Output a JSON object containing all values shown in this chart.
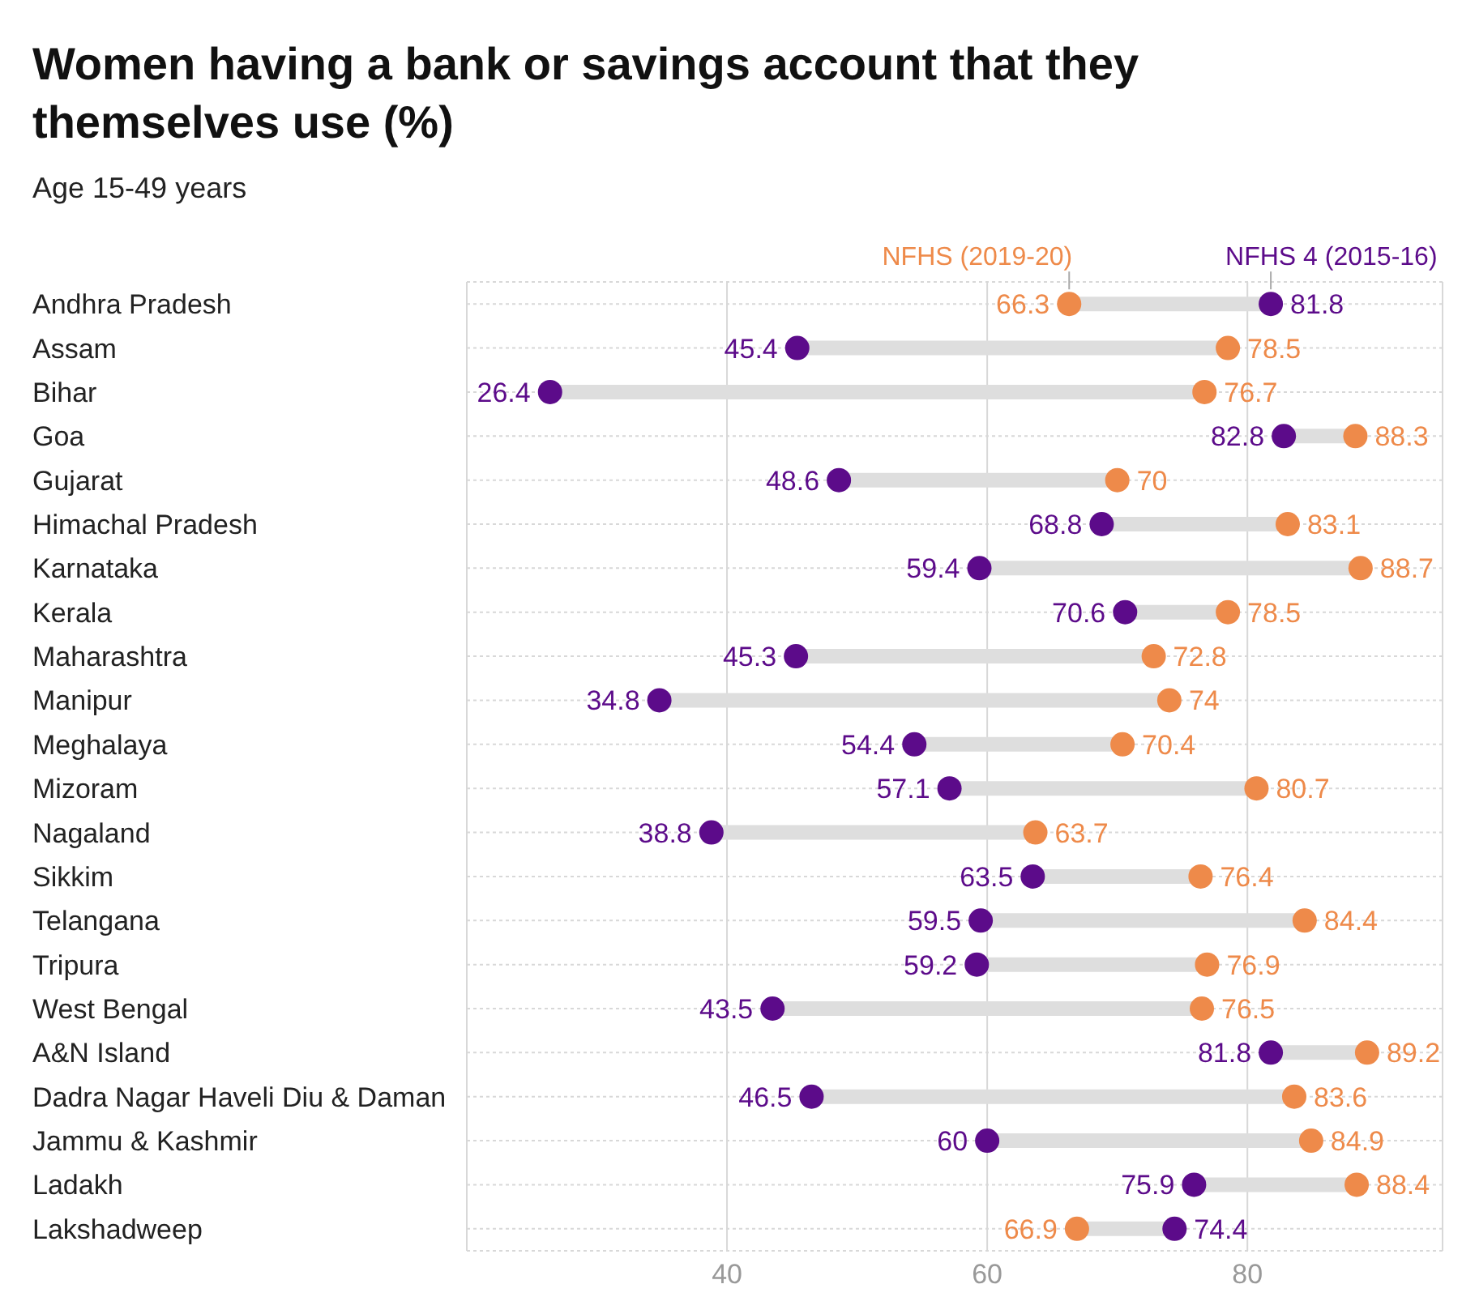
{
  "chart_data": {
    "type": "scatter",
    "title": "Women having a bank or savings account that they themselves use (%)",
    "subtitle": "Age 15-49 years",
    "orientation": "horizontal",
    "categories": [
      "Andhra Pradesh",
      "Assam",
      "Bihar",
      "Goa",
      "Gujarat",
      "Himachal Pradesh",
      "Karnataka",
      "Kerala",
      "Maharashtra",
      "Manipur",
      "Meghalaya",
      "Mizoram",
      "Nagaland",
      "Sikkim",
      "Telangana",
      "Tripura",
      "West Bengal",
      "A&N Island",
      "Dadra Nagar Haveli Diu & Daman",
      "Jammu & Kashmir",
      "Ladakh",
      "Lakshadweep"
    ],
    "series": [
      {
        "name": "NFHS 4 (2015-16)",
        "color": "#5c0b8a",
        "values": [
          81.8,
          45.4,
          26.4,
          82.8,
          48.6,
          68.8,
          59.4,
          70.6,
          45.3,
          34.8,
          54.4,
          57.1,
          38.8,
          63.5,
          59.5,
          59.2,
          43.5,
          81.8,
          46.5,
          60,
          75.9,
          74.4
        ]
      },
      {
        "name": "NFHS (2019-20)",
        "color": "#ee8a4a",
        "values": [
          66.3,
          78.5,
          76.7,
          88.3,
          70,
          83.1,
          88.7,
          78.5,
          72.8,
          74,
          70.4,
          80.7,
          63.7,
          76.4,
          84.4,
          76.9,
          76.5,
          89.2,
          83.6,
          84.9,
          88.4,
          66.9
        ]
      }
    ],
    "xlim": [
      20,
      95
    ],
    "xticks": [
      40,
      60,
      80
    ],
    "grid": true,
    "marker": "circle",
    "data_labels": true
  }
}
